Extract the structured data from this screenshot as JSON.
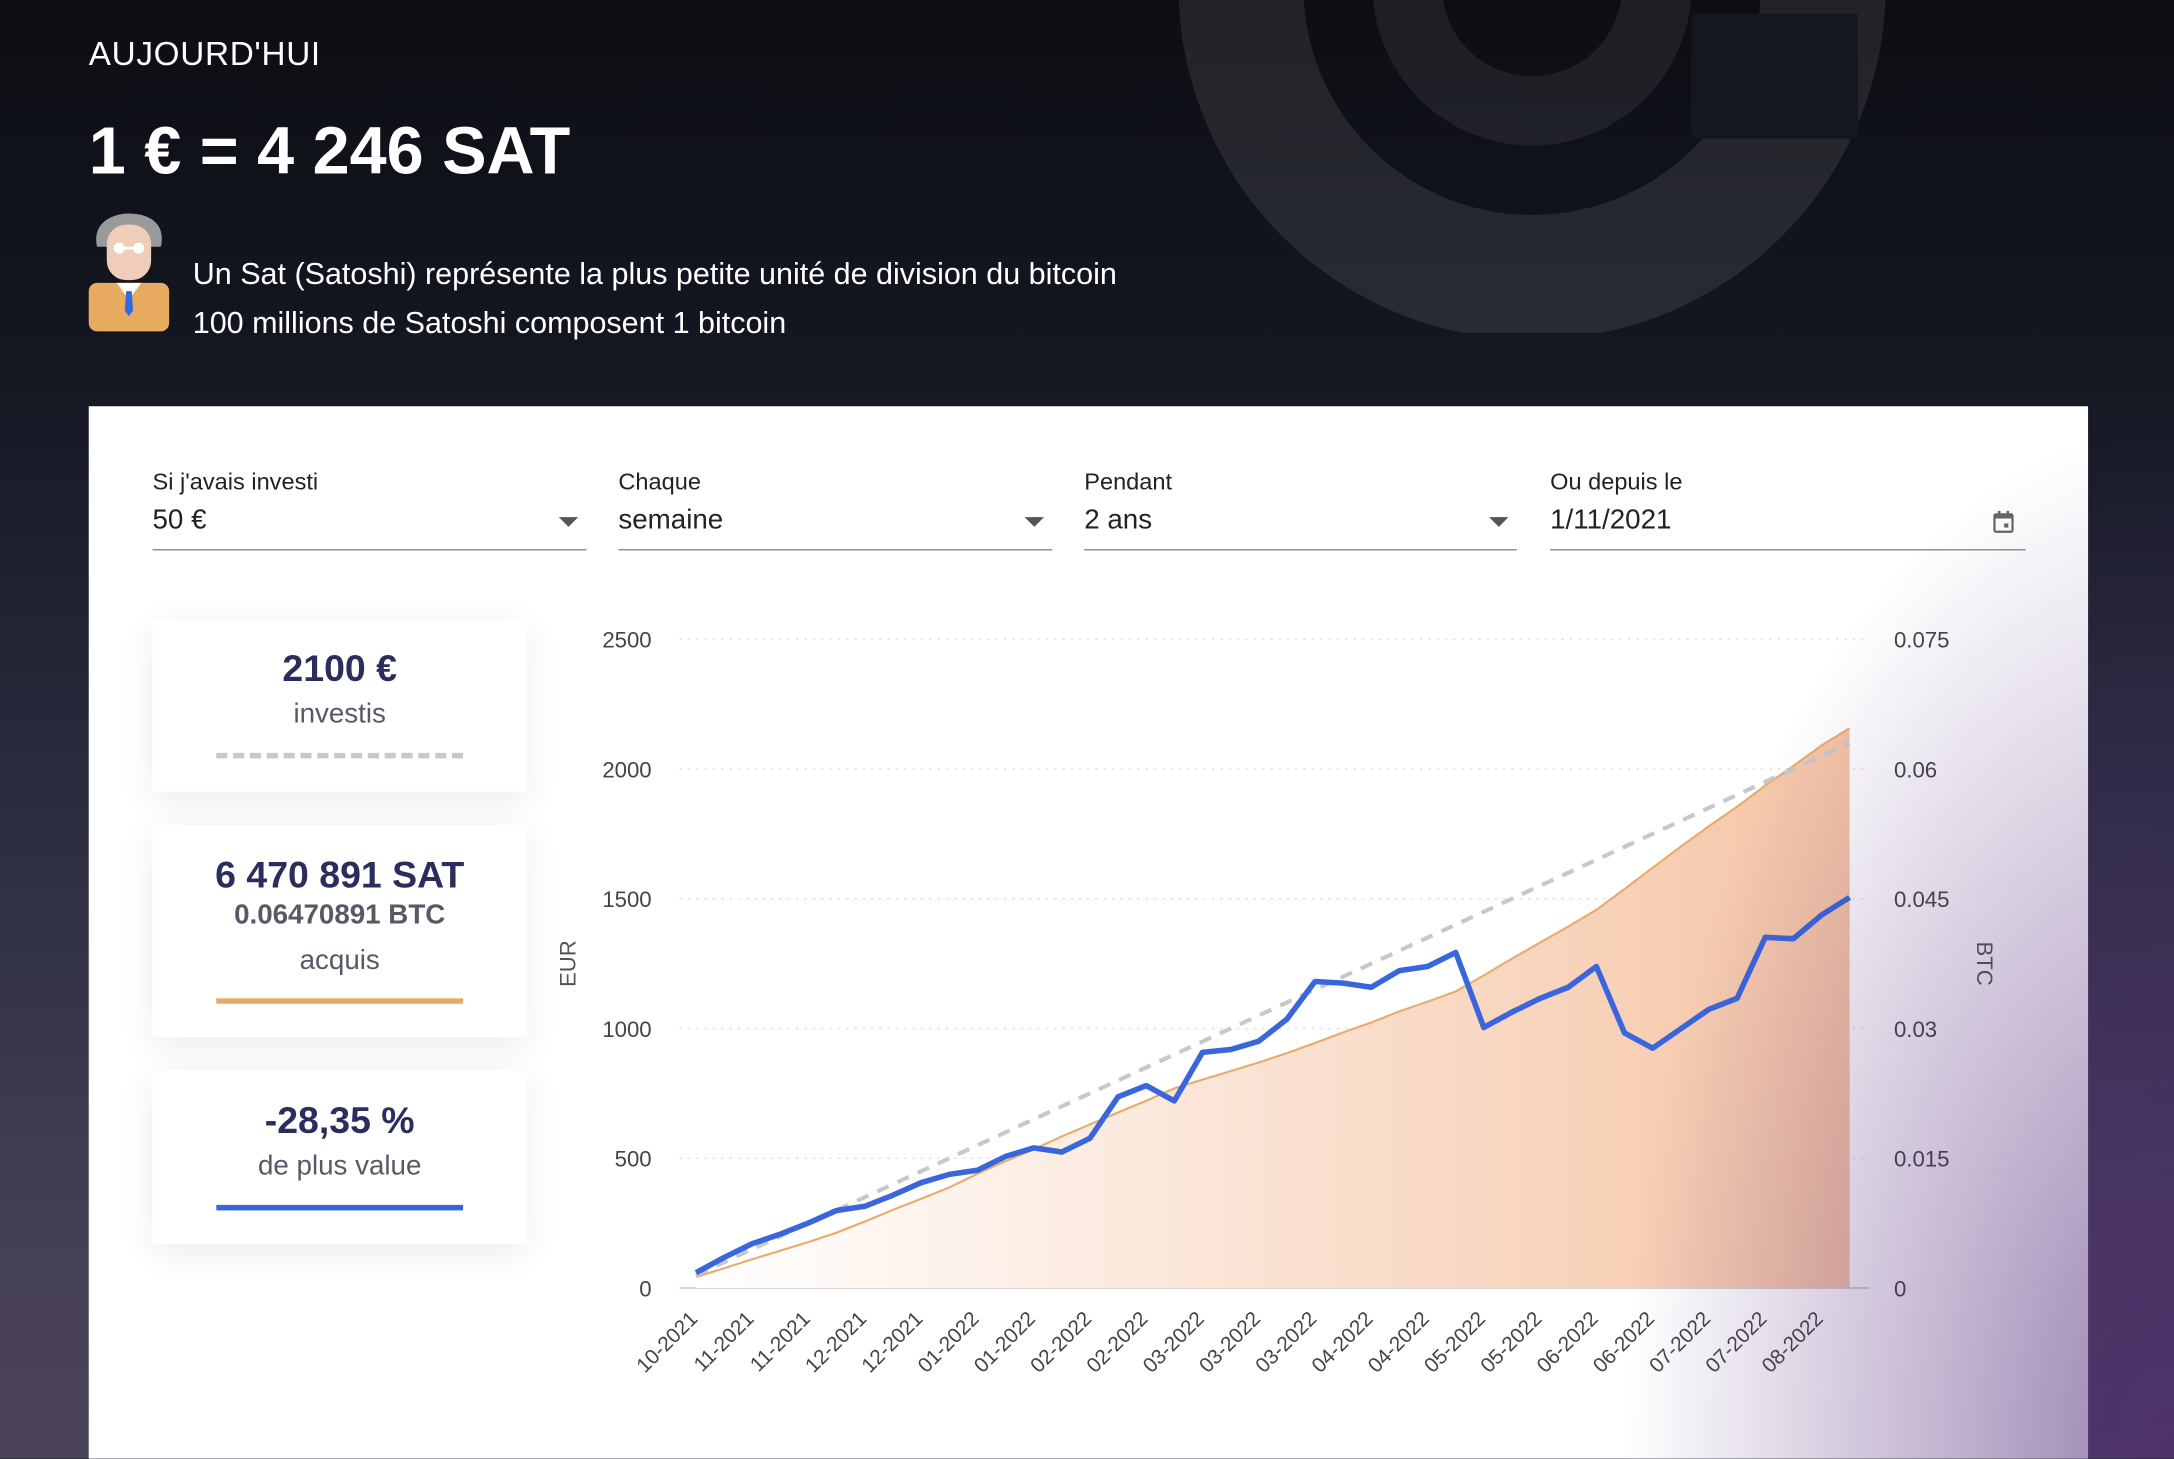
{
  "header": {
    "today_label": "AUJOURD'HUI",
    "rate": "1 € = 4 246 SAT",
    "info_line1": "Un Sat (Satoshi) représente la plus petite unité de division du bitcoin",
    "info_line2": "100 millions de Satoshi composent 1 bitcoin"
  },
  "form": {
    "fields": [
      {
        "label": "Si j'avais investi",
        "value": "50 €",
        "icon": "caret-down"
      },
      {
        "label": "Chaque",
        "value": "semaine",
        "icon": "caret-down"
      },
      {
        "label": "Pendant",
        "value": "2 ans",
        "icon": "caret-down"
      },
      {
        "label": "Ou depuis le",
        "value": "1/11/2021",
        "icon": "calendar-icon"
      }
    ]
  },
  "stats": {
    "invested": {
      "value": "2100 €",
      "label": "investis",
      "color": "#c8c8c8"
    },
    "acquired": {
      "value": "6 470 891 SAT",
      "btc": "0.06470891 BTC",
      "label": "acquis",
      "color": "#e8aa6a"
    },
    "gain": {
      "value": "-28,35 %",
      "label": "de plus value",
      "color": "#3a66db"
    }
  },
  "chart_data": {
    "type": "line",
    "ylabel_left": "EUR",
    "ylabel_right": "BTC",
    "ylim_left": [
      0,
      2500
    ],
    "ylim_right": [
      0,
      0.075
    ],
    "yticks_left": [
      "0",
      "500",
      "1000",
      "1500",
      "2000",
      "2500"
    ],
    "yticks_right": [
      "0",
      "0.015",
      "0.03",
      "0.045",
      "0.06",
      "0.075"
    ],
    "grid": true,
    "x_tick_labels": [
      "10-2021",
      "11-2021",
      "11-2021",
      "12-2021",
      "12-2021",
      "01-2022",
      "01-2022",
      "02-2022",
      "02-2022",
      "03-2022",
      "03-2022",
      "03-2022",
      "04-2022",
      "04-2022",
      "05-2022",
      "05-2022",
      "06-2022",
      "06-2022",
      "07-2022",
      "07-2022",
      "08-2022"
    ],
    "series": [
      {
        "axis": "left",
        "style": "dashed",
        "color": "#c8c8c8",
        "values": [
          50,
          100,
          150,
          200,
          250,
          300,
          350,
          400,
          450,
          500,
          550,
          600,
          650,
          700,
          750,
          800,
          850,
          900,
          950,
          1000,
          1050,
          1100,
          1150,
          1200,
          1250,
          1300,
          1350,
          1400,
          1450,
          1500,
          1550,
          1600,
          1650,
          1700,
          1750,
          1800,
          1850,
          1900,
          1950,
          2000,
          2050,
          2100
        ]
      },
      {
        "axis": "left",
        "style": "solid",
        "color": "#3a66db",
        "values": [
          59,
          118,
          171,
          208,
          251,
          299,
          315,
          358,
          406,
          438,
          454,
          507,
          540,
          524,
          577,
          737,
          780,
          721,
          908,
          919,
          951,
          1036,
          1181,
          1175,
          1159,
          1223,
          1239,
          1293,
          1004,
          1063,
          1116,
          1159,
          1239,
          983,
          924,
          999,
          1074,
          1116,
          1351,
          1346,
          1437,
          1505
        ]
      },
      {
        "axis": "right",
        "style": "area",
        "color": "#e8aa6a",
        "values": [
          0.00128,
          0.00229,
          0.00333,
          0.00433,
          0.00532,
          0.00641,
          0.00769,
          0.00904,
          0.01032,
          0.01163,
          0.0132,
          0.01466,
          0.01603,
          0.01753,
          0.01891,
          0.02029,
          0.02165,
          0.02308,
          0.02409,
          0.02508,
          0.02607,
          0.02715,
          0.02832,
          0.02955,
          0.03069,
          0.03199,
          0.0331,
          0.03429,
          0.03614,
          0.03808,
          0.03994,
          0.04178,
          0.04372,
          0.04612,
          0.04859,
          0.05103,
          0.05338,
          0.05563,
          0.05808,
          0.06034,
          0.06271,
          0.06471
        ]
      }
    ]
  }
}
